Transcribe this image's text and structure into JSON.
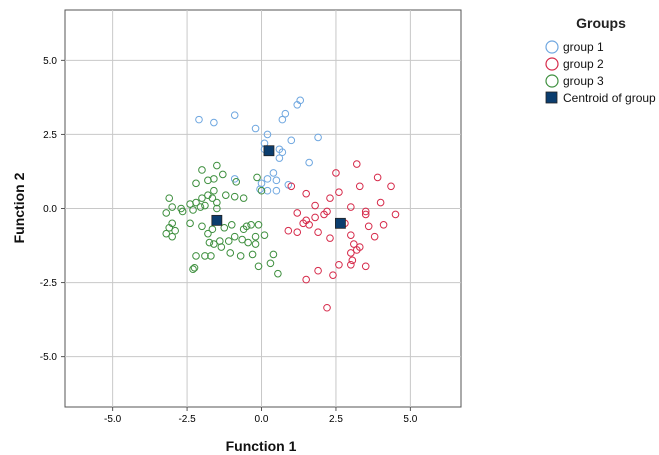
{
  "chart_data": {
    "type": "scatter",
    "xlabel": "Function 1",
    "ylabel": "Function 2",
    "xlim": [
      -6.6,
      6.7
    ],
    "ylim": [
      -6.7,
      6.7
    ],
    "xticks": [
      -5.0,
      -2.5,
      0.0,
      2.5,
      5.0
    ],
    "yticks": [
      5.0,
      2.5,
      0.0,
      -2.5,
      -5.0
    ],
    "xtick_labels": [
      "-5.0",
      "-2.5",
      "0.0",
      "2.5",
      "5.0"
    ],
    "ytick_labels": [
      "5.0",
      "2.5",
      "0.0",
      "-2.5",
      "-5.0"
    ],
    "grid": true,
    "legend": {
      "title": "Groups",
      "position": "right"
    },
    "series": [
      {
        "name": "group 1",
        "color": "#6fa7e0",
        "marker": "circle-open",
        "points": [
          [
            -2.1,
            3.0
          ],
          [
            -1.6,
            2.9
          ],
          [
            -0.9,
            3.15
          ],
          [
            -0.2,
            2.7
          ],
          [
            0.2,
            2.5
          ],
          [
            0.7,
            3.0
          ],
          [
            0.8,
            3.2
          ],
          [
            1.2,
            3.5
          ],
          [
            1.3,
            3.65
          ],
          [
            0.1,
            2.2
          ],
          [
            1.0,
            2.3
          ],
          [
            1.9,
            2.4
          ],
          [
            0.6,
            2.0
          ],
          [
            0.7,
            1.9
          ],
          [
            0.6,
            1.7
          ],
          [
            1.6,
            1.55
          ],
          [
            0.4,
            1.2
          ],
          [
            0.2,
            1.0
          ],
          [
            -0.9,
            1.0
          ],
          [
            0.5,
            0.95
          ],
          [
            0.0,
            0.85
          ],
          [
            0.2,
            0.6
          ],
          [
            0.5,
            0.6
          ],
          [
            0.9,
            0.8
          ],
          [
            -0.05,
            0.65
          ],
          [
            0.1,
            2.0
          ]
        ]
      },
      {
        "name": "group 2",
        "color": "#d62a4a",
        "marker": "circle-open",
        "points": [
          [
            3.2,
            1.5
          ],
          [
            2.5,
            1.2
          ],
          [
            3.9,
            1.05
          ],
          [
            4.35,
            0.75
          ],
          [
            2.6,
            0.55
          ],
          [
            3.3,
            0.75
          ],
          [
            1.5,
            0.5
          ],
          [
            2.3,
            0.35
          ],
          [
            3.0,
            0.05
          ],
          [
            3.5,
            -0.1
          ],
          [
            3.5,
            -0.2
          ],
          [
            4.0,
            0.2
          ],
          [
            4.5,
            -0.2
          ],
          [
            1.8,
            0.1
          ],
          [
            1.2,
            -0.15
          ],
          [
            2.2,
            -0.1
          ],
          [
            1.0,
            0.75
          ],
          [
            2.1,
            -0.2
          ],
          [
            1.8,
            -0.3
          ],
          [
            1.5,
            -0.4
          ],
          [
            1.4,
            -0.5
          ],
          [
            1.6,
            -0.55
          ],
          [
            2.8,
            -0.5
          ],
          [
            3.6,
            -0.6
          ],
          [
            4.1,
            -0.55
          ],
          [
            1.2,
            -0.8
          ],
          [
            1.9,
            -0.8
          ],
          [
            2.3,
            -1.0
          ],
          [
            3.0,
            -0.9
          ],
          [
            3.8,
            -0.95
          ],
          [
            3.1,
            -1.2
          ],
          [
            3.3,
            -1.3
          ],
          [
            3.2,
            -1.4
          ],
          [
            3.0,
            -1.5
          ],
          [
            3.05,
            -1.75
          ],
          [
            2.6,
            -1.9
          ],
          [
            3.5,
            -1.95
          ],
          [
            3.0,
            -1.9
          ],
          [
            1.9,
            -2.1
          ],
          [
            2.4,
            -2.25
          ],
          [
            1.5,
            -2.4
          ],
          [
            2.2,
            -3.35
          ],
          [
            0.9,
            -0.75
          ]
        ]
      },
      {
        "name": "group 3",
        "color": "#3e8f3e",
        "marker": "circle-open",
        "points": [
          [
            -2.0,
            1.3
          ],
          [
            -1.5,
            1.45
          ],
          [
            -1.3,
            1.15
          ],
          [
            -0.85,
            0.9
          ],
          [
            -2.2,
            0.85
          ],
          [
            -1.8,
            0.95
          ],
          [
            -1.6,
            1.0
          ],
          [
            -1.6,
            0.6
          ],
          [
            -1.2,
            0.45
          ],
          [
            -0.9,
            0.4
          ],
          [
            -1.8,
            0.45
          ],
          [
            -2.0,
            0.35
          ],
          [
            -2.2,
            0.2
          ],
          [
            -2.4,
            0.15
          ],
          [
            -1.5,
            0.2
          ],
          [
            -1.5,
            0.0
          ],
          [
            -2.7,
            0.0
          ],
          [
            -2.3,
            -0.05
          ],
          [
            -2.05,
            0.05
          ],
          [
            -1.9,
            0.1
          ],
          [
            -0.6,
            0.35
          ],
          [
            -3.1,
            0.35
          ],
          [
            -3.0,
            0.05
          ],
          [
            -3.2,
            -0.15
          ],
          [
            -3.0,
            -0.5
          ],
          [
            -2.9,
            -0.75
          ],
          [
            -3.1,
            -0.65
          ],
          [
            -3.2,
            -0.85
          ],
          [
            -3.0,
            -0.95
          ],
          [
            -2.4,
            -0.5
          ],
          [
            -2.0,
            -0.6
          ],
          [
            -1.8,
            -0.85
          ],
          [
            -1.65,
            -0.7
          ],
          [
            -1.25,
            -0.65
          ],
          [
            -1.0,
            -0.55
          ],
          [
            -0.9,
            -0.95
          ],
          [
            -0.6,
            -0.7
          ],
          [
            -0.5,
            -0.6
          ],
          [
            -0.35,
            -0.55
          ],
          [
            -0.1,
            -0.55
          ],
          [
            -0.2,
            -0.95
          ],
          [
            0.1,
            -0.9
          ],
          [
            -1.4,
            -1.1
          ],
          [
            -1.6,
            -1.2
          ],
          [
            -1.75,
            -1.15
          ],
          [
            -1.1,
            -1.1
          ],
          [
            -0.65,
            -1.05
          ],
          [
            -0.45,
            -1.15
          ],
          [
            -0.2,
            -1.2
          ],
          [
            -1.05,
            -1.5
          ],
          [
            -0.7,
            -1.6
          ],
          [
            -0.3,
            -1.55
          ],
          [
            0.4,
            -1.55
          ],
          [
            -2.2,
            -1.6
          ],
          [
            -1.9,
            -1.6
          ],
          [
            -1.7,
            -1.6
          ],
          [
            0.3,
            -1.85
          ],
          [
            -0.1,
            -1.95
          ],
          [
            0.55,
            -2.2
          ],
          [
            -2.3,
            -2.05
          ],
          [
            -2.25,
            -2.0
          ],
          [
            -0.15,
            1.05
          ],
          [
            -1.35,
            -1.3
          ],
          [
            0.0,
            0.6
          ],
          [
            -2.65,
            -0.1
          ],
          [
            -1.65,
            0.35
          ]
        ]
      },
      {
        "name": "Centroid of group",
        "color": "#0b3d6e",
        "marker": "square",
        "points": [
          [
            0.25,
            1.95
          ],
          [
            2.65,
            -0.5
          ],
          [
            -1.5,
            -0.4
          ]
        ]
      }
    ]
  }
}
